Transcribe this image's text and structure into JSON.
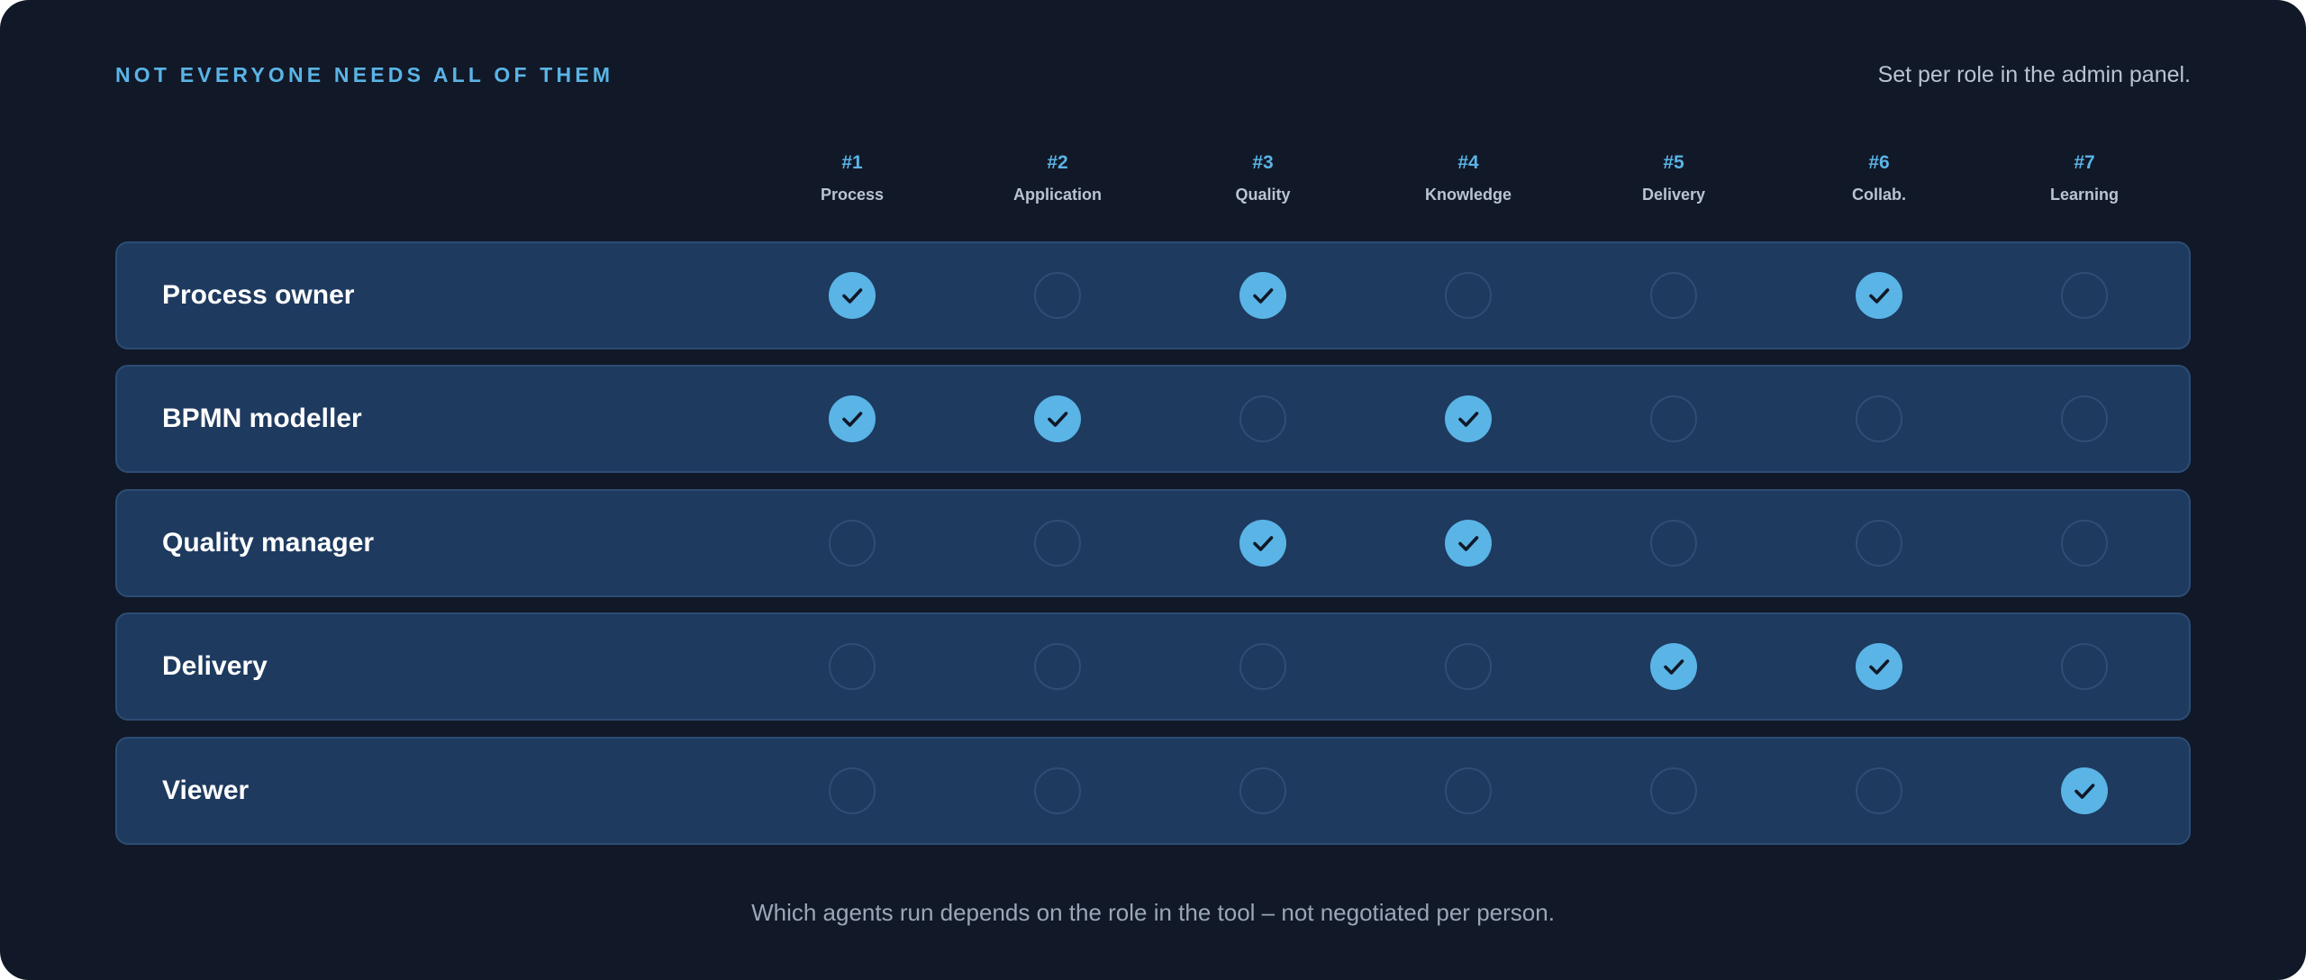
{
  "heading": "NOT EVERYONE NEEDS ALL OF THEM",
  "note": "Set per role in the admin panel.",
  "columns": [
    {
      "num": "#1",
      "label": "Process"
    },
    {
      "num": "#2",
      "label": "Application"
    },
    {
      "num": "#3",
      "label": "Quality"
    },
    {
      "num": "#4",
      "label": "Knowledge"
    },
    {
      "num": "#5",
      "label": "Delivery"
    },
    {
      "num": "#6",
      "label": "Collab."
    },
    {
      "num": "#7",
      "label": "Learning"
    }
  ],
  "rows": [
    {
      "label": "Process owner",
      "checks": [
        true,
        false,
        true,
        false,
        false,
        true,
        false
      ]
    },
    {
      "label": "BPMN modeller",
      "checks": [
        true,
        true,
        false,
        true,
        false,
        false,
        false
      ]
    },
    {
      "label": "Quality manager",
      "checks": [
        false,
        false,
        true,
        true,
        false,
        false,
        false
      ]
    },
    {
      "label": "Delivery",
      "checks": [
        false,
        false,
        false,
        false,
        true,
        true,
        false
      ]
    },
    {
      "label": "Viewer",
      "checks": [
        false,
        false,
        false,
        false,
        false,
        false,
        true
      ]
    }
  ],
  "footer": "Which agents run depends on the role in the tool – not negotiated per person.",
  "colors": {
    "background": "#111827",
    "row": "#1e3a5f",
    "accent": "#5ab4e6",
    "check_mark": "#111827"
  }
}
